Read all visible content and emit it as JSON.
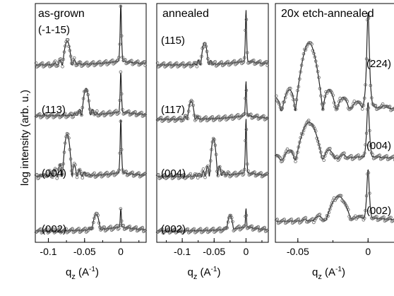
{
  "figure": {
    "ylabel": "log intensity (arb. u.)",
    "xlabel_main": "q",
    "xlabel_sub": "z",
    "xlabel_unit_pre": " (A",
    "xlabel_unit_exp": "-1",
    "xlabel_unit_post": ")"
  },
  "chart_data": [
    {
      "type": "line",
      "title": "as-grown",
      "xlabel": "q_z (A^-1)",
      "ylabel": "log intensity (arb. u.)",
      "xlim": [
        -0.118,
        0.035
      ],
      "y_scale": "log (stacked, offset)",
      "x_ticks": [
        -0.1,
        -0.05,
        0
      ],
      "x_tick_labels": [
        "-0.1",
        "-0.05",
        "0"
      ],
      "series": [
        {
          "name": "(-1-15)",
          "substrate_peak": 0.0,
          "layer_peak": -0.074,
          "fringe_period": 0.0068
        },
        {
          "name": "(113)",
          "substrate_peak": 0.0,
          "layer_peak": -0.048,
          "fringe_period": 0.0062
        },
        {
          "name": "(004)",
          "substrate_peak": 0.0,
          "layer_peak": -0.074,
          "fringe_period": 0.0068
        },
        {
          "name": "(002)",
          "substrate_peak": 0.0,
          "layer_peak": -0.034,
          "fringe_period": 0.0068
        }
      ]
    },
    {
      "type": "line",
      "title": "annealed",
      "xlabel": "q_z (A^-1)",
      "ylabel": "",
      "xlim": [
        -0.14,
        0.035
      ],
      "y_scale": "log (stacked, offset)",
      "x_ticks": [
        -0.1,
        -0.05,
        0
      ],
      "x_tick_labels": [
        "-0.1",
        "-0.05",
        "0"
      ],
      "series": [
        {
          "name": "(115)",
          "substrate_peak": 0.0,
          "layer_peak": -0.065,
          "fringe_period": 0.0065
        },
        {
          "name": "(117)",
          "substrate_peak": 0.0,
          "layer_peak": -0.086,
          "fringe_period": 0.0065
        },
        {
          "name": "(004)",
          "substrate_peak": 0.0,
          "layer_peak": -0.051,
          "fringe_period": 0.0065
        },
        {
          "name": "(002)",
          "substrate_peak": 0.0,
          "layer_peak": -0.025,
          "fringe_period": 0.0065
        }
      ]
    },
    {
      "type": "line",
      "title": "20x etch-annealed",
      "xlabel": "q_z (A^-1)",
      "ylabel": "",
      "xlim": [
        -0.066,
        0.022
      ],
      "y_scale": "log (stacked, offset)",
      "x_ticks": [
        -0.05,
        0
      ],
      "x_tick_labels": [
        "-0.05",
        "0"
      ],
      "series": [
        {
          "name": "(224)",
          "substrate_peak": 0.0,
          "layer_peak": -0.042,
          "fringe_period": 0.0098
        },
        {
          "name": "(004)",
          "substrate_peak": 0.0,
          "layer_peak": -0.042,
          "fringe_period": 0.0098
        },
        {
          "name": "(002)",
          "substrate_peak": 0.0,
          "layer_peak": -0.021,
          "fringe_period": 0.0098
        }
      ]
    }
  ]
}
